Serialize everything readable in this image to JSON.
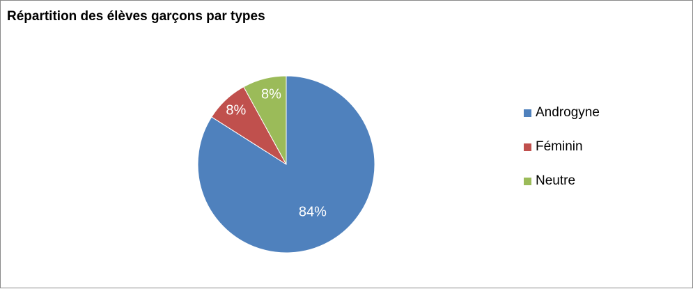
{
  "chart_data": {
    "type": "pie",
    "title": "Répartition des élèves garçons par types",
    "categories": [
      "Androgyne",
      "Féminin",
      "Neutre"
    ],
    "values": [
      84,
      8,
      8
    ],
    "labels": [
      "84%",
      "8%",
      "8%"
    ],
    "colors": [
      "#4f81bd",
      "#c0504d",
      "#9bbb59"
    ],
    "legend_position": "right"
  }
}
